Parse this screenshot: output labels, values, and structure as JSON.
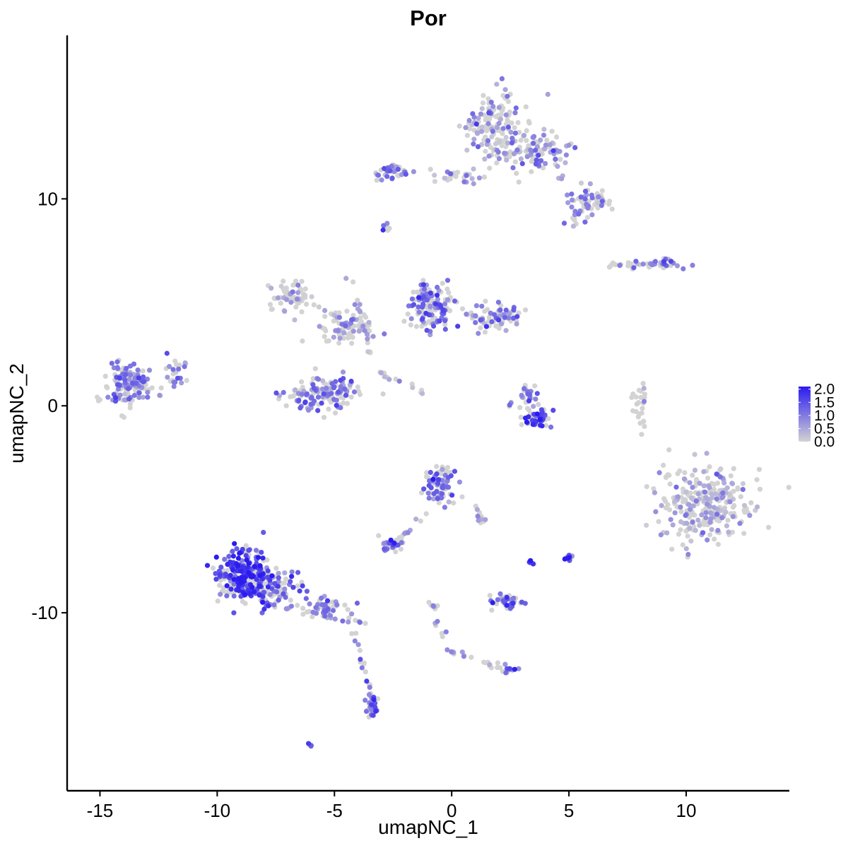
{
  "chart_data": {
    "type": "scatter",
    "title": "Por",
    "xlabel": "umapNC_1",
    "ylabel": "umapNC_2",
    "xlim": [
      -16.4,
      14.4
    ],
    "ylim": [
      -18.6,
      17.9
    ],
    "xticks": [
      -15,
      -10,
      -5,
      0,
      5,
      10
    ],
    "xtick_labels": [
      "-15",
      "-10",
      "-5",
      "0",
      "5",
      "10"
    ],
    "yticks": [
      -10,
      0,
      10
    ],
    "ytick_labels": [
      "-10",
      "0",
      "10"
    ],
    "grid": false,
    "legend": {
      "placement": "right",
      "kind": "colorbar",
      "min": 0.0,
      "max": 2.1,
      "ticks": [
        2.0,
        1.5,
        1.0,
        0.5,
        0.0
      ],
      "tick_labels": [
        "2.0",
        "1.5",
        "1.0",
        "0.5",
        "0.0"
      ]
    },
    "colors": {
      "low": "#d3d3d3",
      "high": "#2b1bf0"
    },
    "clusters": [
      {
        "center": [
          1.8,
          13.5
        ],
        "spread": [
          1.1,
          1.4
        ],
        "n": 140,
        "expr": 0.6
      },
      {
        "center": [
          3.6,
          12.3
        ],
        "spread": [
          1.3,
          0.8
        ],
        "n": 110,
        "expr": 0.6
      },
      {
        "center": [
          5.8,
          9.8
        ],
        "spread": [
          0.8,
          0.7
        ],
        "n": 60,
        "expr": 0.7
      },
      {
        "center": [
          -2.5,
          11.3
        ],
        "spread": [
          0.6,
          0.4
        ],
        "n": 40,
        "expr": 0.9
      },
      {
        "center": [
          0.5,
          11.1
        ],
        "spread": [
          1.3,
          0.3
        ],
        "n": 30,
        "expr": 0.5
      },
      {
        "center": [
          -2.8,
          8.6
        ],
        "spread": [
          0.2,
          0.2
        ],
        "n": 8,
        "expr": 1.0
      },
      {
        "center": [
          -0.8,
          4.8
        ],
        "spread": [
          0.9,
          1.1
        ],
        "n": 130,
        "expr": 1.1
      },
      {
        "center": [
          1.8,
          4.3
        ],
        "spread": [
          1.1,
          0.6
        ],
        "n": 80,
        "expr": 0.9
      },
      {
        "center": [
          -6.8,
          5.3
        ],
        "spread": [
          1.0,
          0.6
        ],
        "n": 60,
        "expr": 0.3
      },
      {
        "center": [
          -4.5,
          3.8
        ],
        "spread": [
          1.2,
          0.7
        ],
        "n": 80,
        "expr": 0.6
      },
      {
        "center": [
          -5.5,
          0.6
        ],
        "spread": [
          1.4,
          0.8
        ],
        "n": 140,
        "expr": 0.9
      },
      {
        "center": [
          -13.8,
          1.0
        ],
        "spread": [
          0.9,
          0.9
        ],
        "n": 140,
        "expr": 0.9
      },
      {
        "center": [
          -11.7,
          1.5
        ],
        "spread": [
          0.6,
          0.6
        ],
        "n": 25,
        "expr": 0.9
      },
      {
        "center": [
          3.6,
          -0.6
        ],
        "spread": [
          0.6,
          0.4
        ],
        "n": 50,
        "expr": 1.6
      },
      {
        "center": [
          3.3,
          0.5
        ],
        "spread": [
          0.3,
          0.6
        ],
        "n": 25,
        "expr": 1.0
      },
      {
        "center": [
          10.8,
          -4.7
        ],
        "spread": [
          1.7,
          1.7
        ],
        "n": 280,
        "expr": 0.35
      },
      {
        "center": [
          8.0,
          0.0
        ],
        "spread": [
          0.3,
          1.0
        ],
        "n": 25,
        "expr": 0.0
      },
      {
        "center": [
          9.0,
          6.9
        ],
        "spread": [
          0.7,
          0.2
        ],
        "n": 30,
        "expr": 1.0
      },
      {
        "center": [
          7.5,
          6.8
        ],
        "spread": [
          0.7,
          0.2
        ],
        "n": 15,
        "expr": 0.7
      },
      {
        "center": [
          -8.8,
          -8.3
        ],
        "spread": [
          1.0,
          1.2
        ],
        "n": 300,
        "expr": 1.7
      },
      {
        "center": [
          -7.4,
          -8.8
        ],
        "spread": [
          0.8,
          0.8
        ],
        "n": 80,
        "expr": 1.2
      },
      {
        "center": [
          -5.3,
          -9.8
        ],
        "spread": [
          0.7,
          0.4
        ],
        "n": 40,
        "expr": 0.9
      },
      {
        "center": [
          -3.4,
          -14.5
        ],
        "spread": [
          0.3,
          0.6
        ],
        "n": 30,
        "expr": 1.2
      },
      {
        "center": [
          -0.5,
          -3.8
        ],
        "spread": [
          0.6,
          0.8
        ],
        "n": 80,
        "expr": 1.2
      },
      {
        "center": [
          -2.6,
          -6.8
        ],
        "spread": [
          0.4,
          0.3
        ],
        "n": 30,
        "expr": 1.1
      },
      {
        "center": [
          2.4,
          -9.5
        ],
        "spread": [
          0.6,
          0.4
        ],
        "n": 50,
        "expr": 1.3
      },
      {
        "center": [
          2.4,
          -12.8
        ],
        "spread": [
          0.3,
          0.2
        ],
        "n": 12,
        "expr": 1.0
      },
      {
        "center": [
          5.0,
          -7.3
        ],
        "spread": [
          0.2,
          0.2
        ],
        "n": 12,
        "expr": 1.8
      },
      {
        "center": [
          3.4,
          -7.6
        ],
        "spread": [
          0.1,
          0.1
        ],
        "n": 6,
        "expr": 1.9
      },
      {
        "center": [
          -6.0,
          -16.4
        ],
        "spread": [
          0.1,
          0.1
        ],
        "n": 5,
        "expr": 1.1
      }
    ],
    "trails": [
      {
        "from": [
          -4.3,
          6.3
        ],
        "to": [
          -3.5,
          2.5
        ],
        "n": 20,
        "expr": 0.4
      },
      {
        "from": [
          -3.1,
          1.6
        ],
        "to": [
          -1.2,
          0.6
        ],
        "n": 15,
        "expr": 0.2
      },
      {
        "from": [
          -8.0,
          -9.5
        ],
        "to": [
          -3.7,
          -10.5
        ],
        "n": 30,
        "expr": 0.8
      },
      {
        "from": [
          -4.2,
          -10.8
        ],
        "to": [
          -3.4,
          -14.0
        ],
        "n": 15,
        "expr": 0.9
      },
      {
        "from": [
          -1.0,
          -5.0
        ],
        "to": [
          -2.3,
          -6.5
        ],
        "n": 12,
        "expr": 0.7
      },
      {
        "from": [
          1.0,
          -4.8
        ],
        "to": [
          1.3,
          -5.7
        ],
        "n": 10,
        "expr": 0.8
      },
      {
        "from": [
          -0.9,
          -9.2
        ],
        "to": [
          -0.2,
          -11.8
        ],
        "n": 15,
        "expr": 0.8
      },
      {
        "from": [
          -0.2,
          -11.8
        ],
        "to": [
          2.4,
          -12.8
        ],
        "n": 18,
        "expr": 0.6
      },
      {
        "from": [
          3.2,
          0.6
        ],
        "to": [
          2.3,
          -0.1
        ],
        "n": 6,
        "expr": 1.0
      },
      {
        "from": [
          4.6,
          11.2
        ],
        "to": [
          5.3,
          8.6
        ],
        "n": 10,
        "expr": 0.3
      }
    ]
  }
}
